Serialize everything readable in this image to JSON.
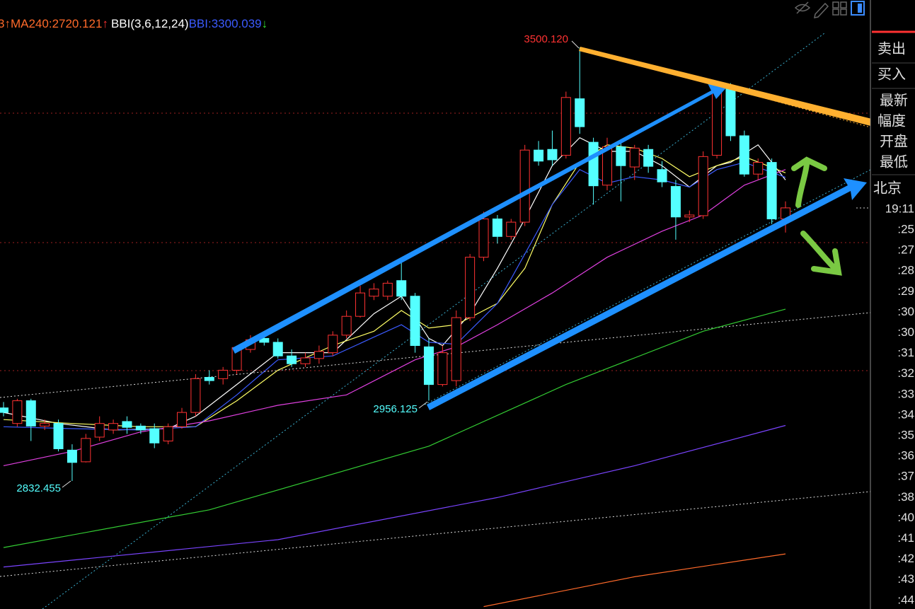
{
  "chart_data": {
    "type": "candlestick",
    "up_color": "#ff3232",
    "down_color": "#54ffff",
    "open": [
      2945,
      2921,
      2956,
      2917,
      2921,
      2880,
      2862,
      2900,
      2911,
      2924,
      2917,
      2913,
      2894,
      2916,
      2938,
      2992,
      2990,
      3003,
      3035,
      3052,
      3046,
      3025,
      3013,
      3021,
      3030,
      3057,
      3086,
      3117,
      3117,
      3141,
      3117,
      3039,
      2981,
      2987,
      3084,
      3177,
      3236,
      3209,
      3231,
      3342,
      3343,
      3334,
      3421,
      3354,
      3288,
      3347,
      3316,
      3343,
      3312,
      3286,
      3239,
      3241,
      3334,
      3437,
      3364,
      3305,
      3323,
      3236
    ],
    "high": [
      2954,
      2959,
      2959,
      2927,
      2927,
      2889,
      2905,
      2932,
      2927,
      2932,
      2921,
      2921,
      2921,
      2945,
      2997,
      3003,
      3008,
      3041,
      3057,
      3057,
      3052,
      3035,
      3030,
      3041,
      3063,
      3095,
      3133,
      3137,
      3141,
      3169,
      3122,
      3052,
      3041,
      3095,
      3182,
      3247,
      3242,
      3236,
      3350,
      3356,
      3372,
      3432,
      3500.12,
      3361,
      3361,
      3356,
      3350,
      3350,
      3325,
      3296,
      3249,
      3340,
      3445,
      3445,
      3372,
      3329,
      3329,
      3263
    ],
    "low": [
      2932,
      2916,
      2894,
      2911,
      2878,
      2832.455,
      2861,
      2894,
      2905,
      2905,
      2905,
      2883,
      2889,
      2913,
      2932,
      2981,
      2981,
      2997,
      3030,
      3041,
      3021,
      3008,
      3008,
      3013,
      3025,
      3052,
      3084,
      3111,
      3111,
      3111,
      3030,
      2956.125,
      2978,
      2978,
      3079,
      3171,
      3198,
      3204,
      3225,
      3318,
      3318,
      3329,
      3367,
      3258,
      3280,
      3263,
      3296,
      3307,
      3285,
      3204,
      3231,
      3236,
      3329,
      3356,
      3301,
      3296,
      3228,
      3215
    ],
    "close": [
      2938,
      2956,
      2917,
      2921,
      2882,
      2861,
      2898,
      2921,
      2921,
      2915,
      2911,
      2891,
      2916,
      2938,
      2990,
      2987,
      3003,
      3038,
      3050,
      3046,
      3025,
      3013,
      3022,
      3032,
      3057,
      3086,
      3122,
      3128,
      3137,
      3117,
      3041,
      2981,
      3030,
      3084,
      3177,
      3236,
      3209,
      3231,
      3342,
      3325,
      3327,
      3423,
      3378,
      3287,
      3347,
      3318,
      3345,
      3317,
      3293,
      3239,
      3242,
      3332,
      3437,
      3364,
      3305,
      3323,
      3236,
      3253
    ],
    "lines": [
      {
        "color": "#ffffff",
        "x": [
          0,
          4,
          8,
          12,
          14,
          17,
          20,
          24,
          27,
          29,
          31,
          32,
          34,
          36,
          38,
          40,
          42,
          44,
          46,
          48,
          50,
          52,
          53,
          55,
          57
        ],
        "values": [
          2938,
          2921,
          2911,
          2913,
          2932,
          2981,
          3030,
          3030,
          3090,
          3117,
          3052,
          3041,
          3090,
          3160,
          3236,
          3318,
          3361,
          3340,
          3340,
          3318,
          3285,
          3318,
          3323,
          3350,
          3296
        ]
      },
      {
        "color": "#ffff66",
        "x": [
          0,
          5,
          10,
          14,
          17,
          20,
          24,
          27,
          29,
          31,
          33,
          36,
          38,
          40,
          42,
          44,
          46,
          48,
          50,
          52,
          54,
          57
        ],
        "values": [
          2927,
          2921,
          2916,
          2916,
          2956,
          3003,
          3041,
          3063,
          3095,
          3068,
          3073,
          3106,
          3160,
          3258,
          3323,
          3350,
          3345,
          3329,
          3301,
          3318,
          3332,
          3307
        ]
      },
      {
        "color": "#3b5bff",
        "x": [
          0,
          5,
          10,
          14,
          17,
          20,
          24,
          27,
          29,
          31,
          33,
          36,
          38,
          40,
          42,
          44,
          46,
          48,
          50,
          52,
          54,
          57
        ],
        "values": [
          2916,
          2913,
          2911,
          2916,
          2965,
          3019,
          3025,
          3054,
          3073,
          3046,
          3043,
          3106,
          3182,
          3258,
          3312,
          3291,
          3301,
          3296,
          3285,
          3312,
          3323,
          3300.039
        ]
      },
      {
        "color": "#e040e0",
        "x": [
          0,
          5,
          10,
          15,
          20,
          25,
          30,
          33,
          36,
          40,
          44,
          48,
          51,
          54,
          57
        ],
        "values": [
          2856,
          2878,
          2908,
          2925,
          2949,
          2965,
          3019,
          3039,
          3073,
          3122,
          3177,
          3217,
          3242,
          3288,
          3312
        ]
      },
      {
        "color": "#33cc33",
        "x": [
          0,
          15,
          31,
          41,
          51,
          57
        ],
        "values": [
          2730,
          2788,
          2886,
          2981,
          3063,
          3097
        ]
      },
      {
        "color": "#7a44ff",
        "x": [
          0,
          20,
          36,
          46,
          57
        ],
        "values": [
          2700,
          2742,
          2807,
          2856,
          2918
        ]
      },
      {
        "color": "#ff6a2a",
        "x": [
          35,
          46,
          57
        ],
        "values": [
          2639,
          2685,
          2720.121
        ]
      }
    ],
    "legend": [
      {
        "text": "3↑",
        "color": "#ff6a2a"
      },
      {
        "text": "MA240:",
        "color": "#ff6a2a",
        "value": 2720.121,
        "arrow": "↑",
        "arrow_color": "#ff3232"
      },
      {
        "text": "BBI(3,6,12,24)",
        "color": "#ffffff"
      },
      {
        "text": "BBI:",
        "color": "#3b5bff",
        "value": 3300.039,
        "arrow": "↓",
        "arrow_color": "#33dd33"
      }
    ],
    "annotations": [
      {
        "text": "3500.120",
        "color": "#ff3232"
      },
      {
        "text": "2956.125",
        "color": "#54ffff"
      },
      {
        "text": "2832.455",
        "color": "#54ffff"
      }
    ]
  },
  "side_panel": {
    "labels": [
      "卖出",
      "买入",
      "最新",
      "幅度",
      "开盘",
      "最低",
      "北京"
    ],
    "time": "19:11",
    "ticks": [
      ":25",
      ":27",
      ":28",
      ":29",
      ":30",
      ":30",
      ":31",
      ":32",
      ":33",
      ":34",
      ":35",
      ":36",
      ":37",
      ":38",
      ":40",
      ":41",
      ":42",
      ":43",
      ":44"
    ]
  }
}
